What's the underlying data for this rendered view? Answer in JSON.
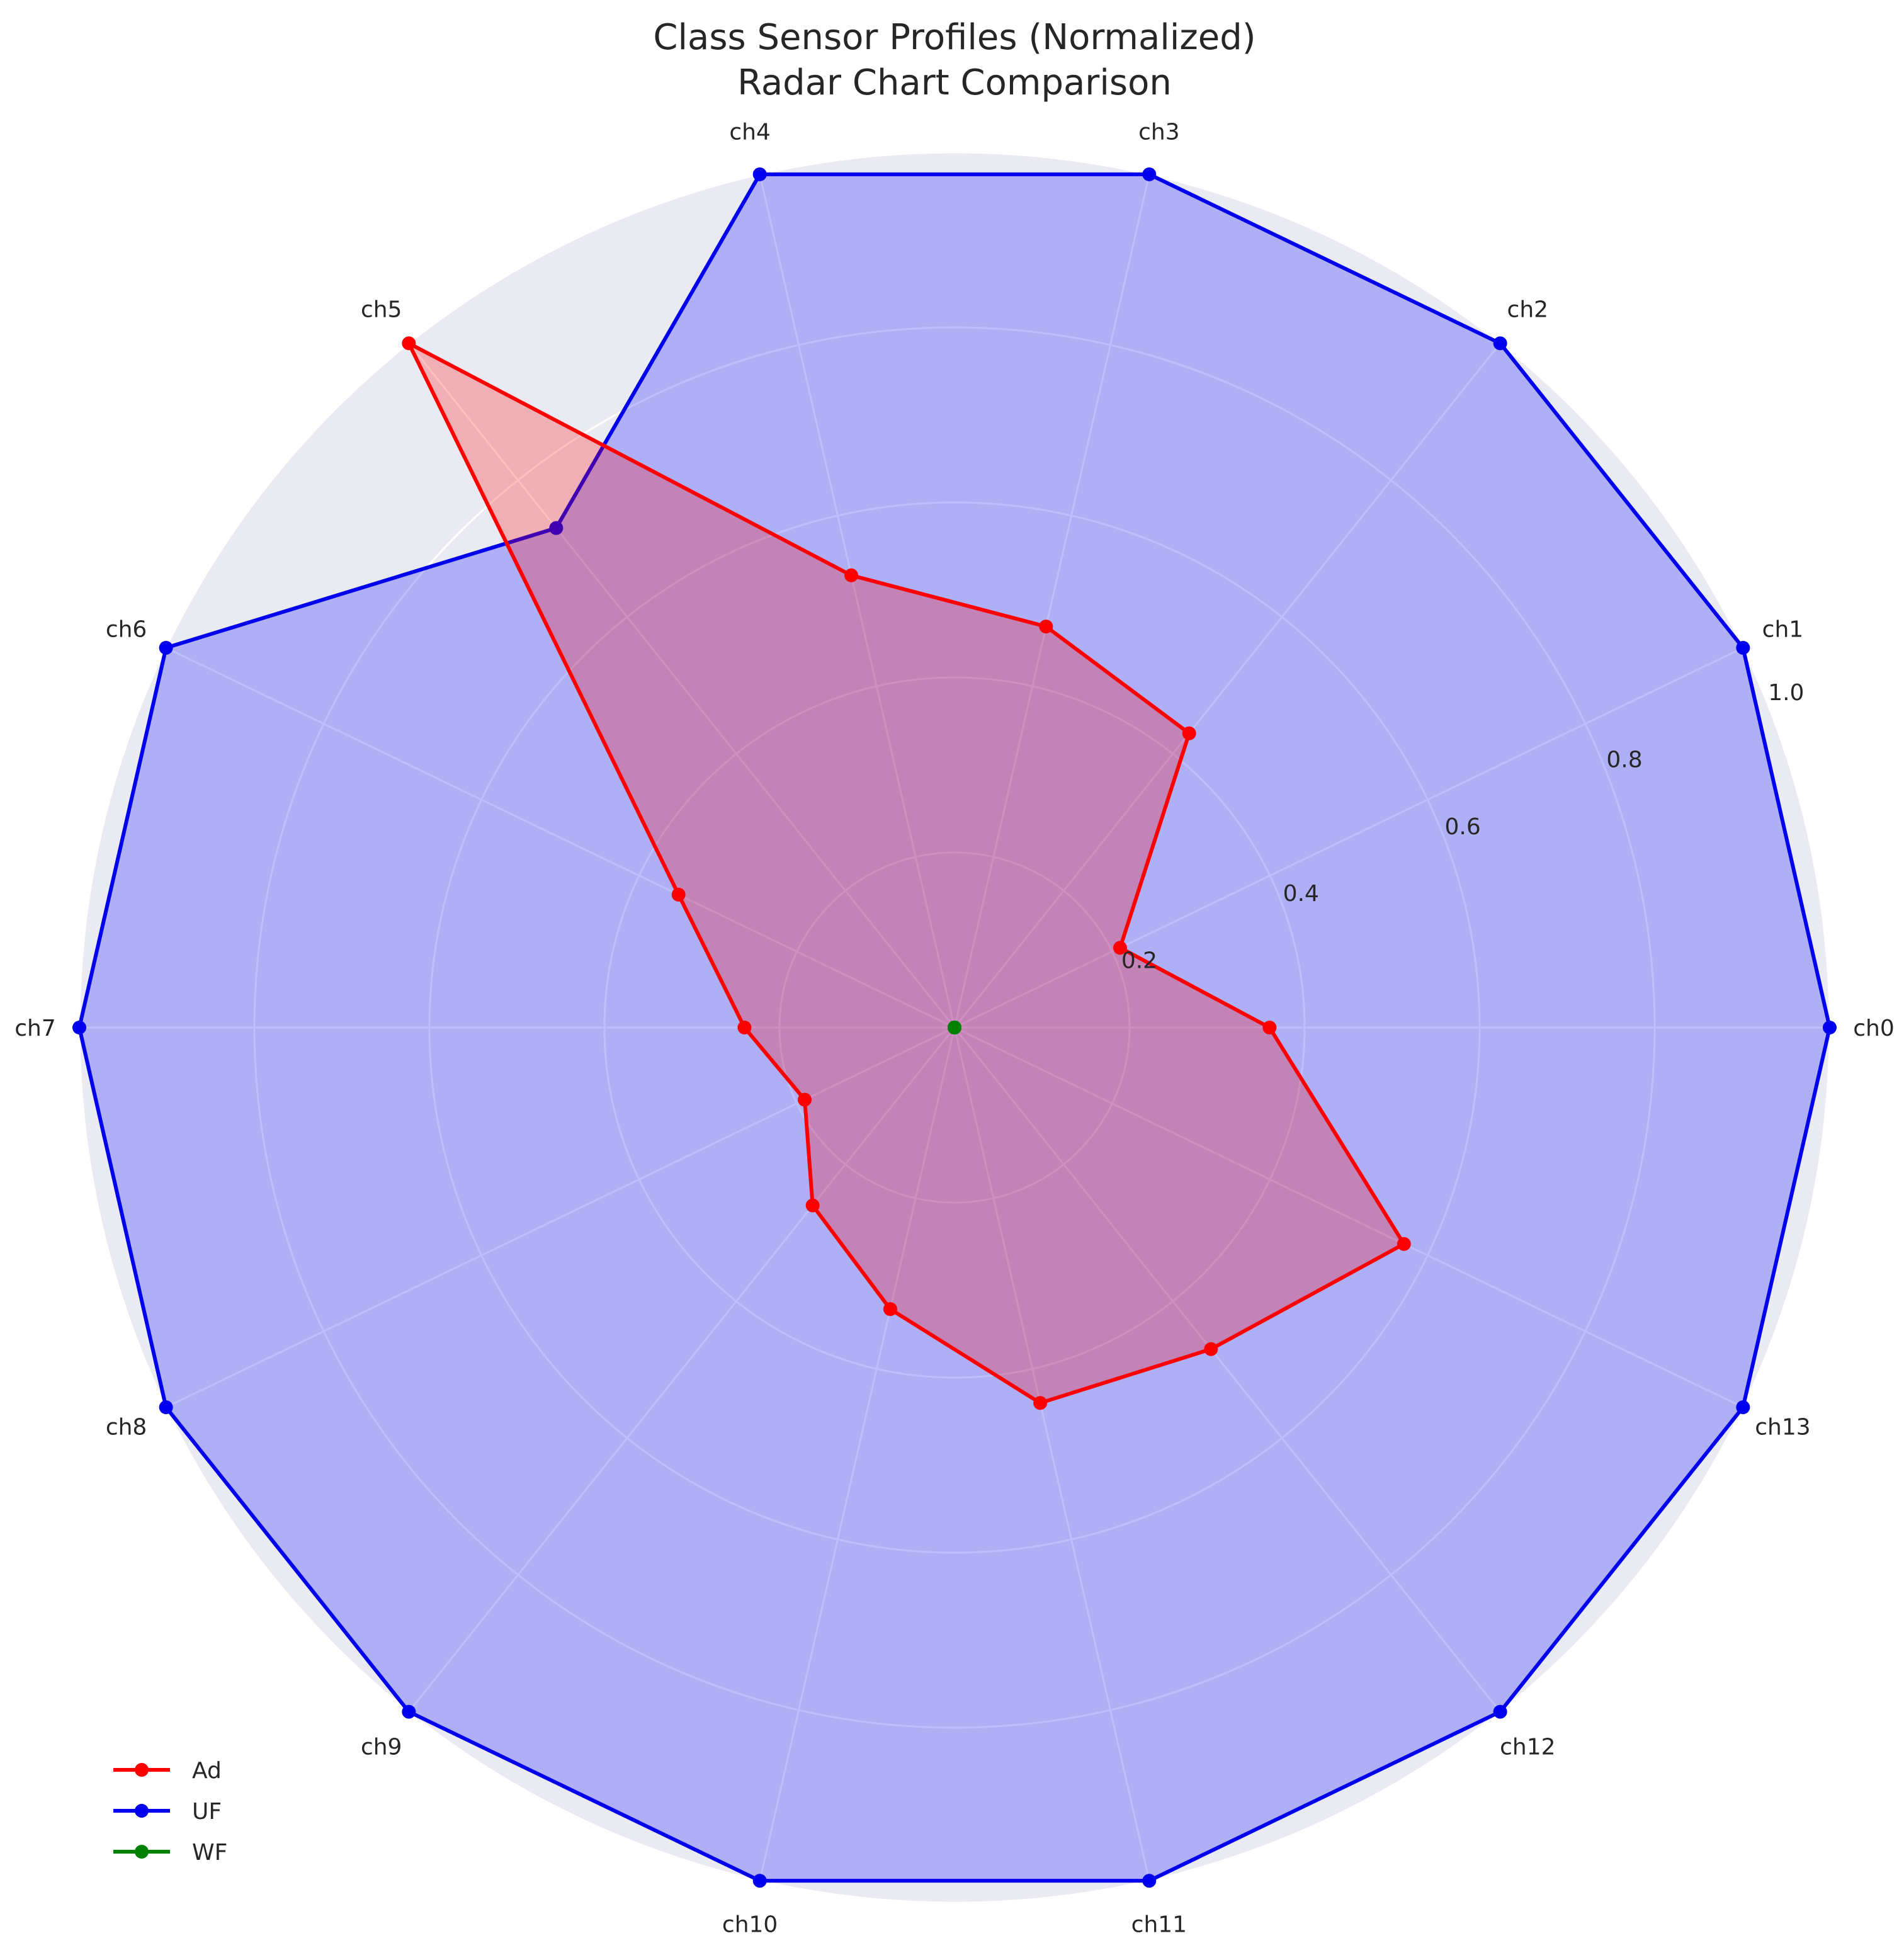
{
  "chart_data": {
    "type": "radar",
    "title_line1": "Class Sensor Profiles (Normalized)",
    "title_line2": "Radar Chart Comparison",
    "categories": [
      "ch0",
      "ch1",
      "ch2",
      "ch3",
      "ch4",
      "ch5",
      "ch6",
      "ch7",
      "ch8",
      "ch9",
      "ch10",
      "ch11",
      "ch12",
      "ch13"
    ],
    "radial_ticks": [
      "0.2",
      "0.4",
      "0.6",
      "0.8",
      "1.0"
    ],
    "radial_tick_values": [
      0.2,
      0.4,
      0.6,
      0.8,
      1.0
    ],
    "ylim": [
      0,
      1.0
    ],
    "grid": true,
    "background_color": "#eaeaf2",
    "legend_position": "lower-left",
    "series": [
      {
        "name": "Ad",
        "color": "#ff0000",
        "fill": "#ff0000",
        "values": [
          0.36,
          0.21,
          0.43,
          0.47,
          0.53,
          1.0,
          0.35,
          0.24,
          0.19,
          0.26,
          0.33,
          0.44,
          0.47,
          0.57
        ]
      },
      {
        "name": "UF",
        "color": "#0000ee",
        "fill": "#0000ff",
        "values": [
          1.0,
          1.0,
          1.0,
          1.0,
          1.0,
          0.73,
          1.0,
          1.0,
          1.0,
          1.0,
          1.0,
          1.0,
          1.0,
          1.0
        ]
      },
      {
        "name": "WF",
        "color": "#008000",
        "fill": "#008000",
        "values": [
          0,
          0,
          0,
          0,
          0,
          0,
          0,
          0,
          0,
          0,
          0,
          0,
          0,
          0
        ]
      }
    ]
  }
}
